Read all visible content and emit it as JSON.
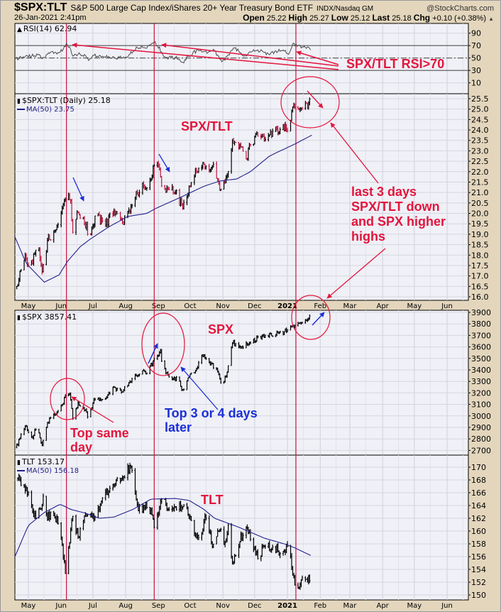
{
  "header": {
    "symbol": "$SPX:TLT",
    "description": "S&P 500 Large Cap Index/iShares 20+ Year Treasury Bond ETF",
    "exchange": "INDX/Nasdaq GM",
    "watermark": "@StockCharts.com",
    "date": "26-Jan-2021 2:41pm",
    "open_label": "Open",
    "open": "25.22",
    "high_label": "High",
    "high": "25.27",
    "low_label": "Low",
    "low": "25.12",
    "last_label": "Last",
    "last": "25.18",
    "chg_label": "Chg",
    "chg": "+0.10 (+0.38%)",
    "chg_icon": "triangle-up-icon"
  },
  "colors": {
    "annotation_red": "#e3163d",
    "annotation_blue": "#1b2fd8",
    "ma_line": "#22228a",
    "down_bar": "#c0143c",
    "marker_line": "#d0103a",
    "plot_bg": "#f0f0f7"
  },
  "x_axis": {
    "unit": "days since 2020-05-01",
    "months": [
      {
        "label": "May",
        "day": 0
      },
      {
        "label": "Jun",
        "day": 31
      },
      {
        "label": "Jul",
        "day": 61
      },
      {
        "label": "Aug",
        "day": 92
      },
      {
        "label": "Sep",
        "day": 123
      },
      {
        "label": "Oct",
        "day": 153
      },
      {
        "label": "Nov",
        "day": 184
      },
      {
        "label": "Dec",
        "day": 214
      },
      {
        "label": "2021",
        "day": 245,
        "bold": true
      },
      {
        "label": "Feb",
        "day": 276
      },
      {
        "label": "Mar",
        "day": 304
      },
      {
        "label": "Apr",
        "day": 335
      },
      {
        "label": "May",
        "day": 365
      },
      {
        "label": "Jun",
        "day": 396
      }
    ],
    "marker_days": [
      36,
      119,
      253
    ]
  },
  "chart_data": [
    {
      "id": "rsi",
      "type": "line",
      "legend": "RSI(14) 62.94",
      "ticks": [
        "90",
        "70",
        "50",
        "30",
        "10"
      ],
      "ref_lines": [
        70,
        50,
        30
      ],
      "series": [
        {
          "name": "RSI(14)",
          "points": [
            [
              -13,
              47
            ],
            [
              -5,
              52
            ],
            [
              9,
              55
            ],
            [
              13,
              49
            ],
            [
              18,
              56
            ],
            [
              26,
              59
            ],
            [
              32,
              61
            ],
            [
              36,
              74
            ],
            [
              39,
              68
            ],
            [
              42,
              53
            ],
            [
              47,
              56
            ],
            [
              54,
              54
            ],
            [
              57,
              46
            ],
            [
              62,
              54
            ],
            [
              72,
              52
            ],
            [
              81,
              51
            ],
            [
              89,
              50
            ],
            [
              96,
              56
            ],
            [
              103,
              67
            ],
            [
              112,
              66
            ],
            [
              119,
              76
            ],
            [
              122,
              70
            ],
            [
              126,
              60
            ],
            [
              130,
              50
            ],
            [
              139,
              51
            ],
            [
              146,
              43
            ],
            [
              152,
              53
            ],
            [
              156,
              60
            ],
            [
              163,
              63
            ],
            [
              170,
              59
            ],
            [
              176,
              62
            ],
            [
              183,
              44
            ],
            [
              188,
              53
            ],
            [
              195,
              66
            ],
            [
              199,
              61
            ],
            [
              206,
              53
            ],
            [
              210,
              60
            ],
            [
              217,
              63
            ],
            [
              223,
              59
            ],
            [
              228,
              55
            ],
            [
              233,
              61
            ],
            [
              242,
              61
            ],
            [
              246,
              56
            ],
            [
              250,
              73
            ],
            [
              255,
              70
            ],
            [
              258,
              66
            ],
            [
              264,
              68
            ],
            [
              267,
              62.94
            ]
          ]
        }
      ]
    },
    {
      "id": "ratio",
      "type": "ohlc",
      "legend": "$SPX:TLT (Daily) 25.18",
      "ma_legend": "MA(50) 23.75",
      "ticks": [
        "25.5",
        "25.0",
        "24.5",
        "24.0",
        "23.5",
        "23.0",
        "22.5",
        "22.0",
        "21.5",
        "21.0",
        "20.5",
        "20.0",
        "19.5",
        "19.0",
        "18.5",
        "18.0",
        "17.5",
        "17.0",
        "16.5",
        "16.0"
      ],
      "series": [
        {
          "name": "$SPX:TLT",
          "points": [
            [
              -11,
              16.5
            ],
            [
              -9,
              16.85
            ],
            [
              -3,
              18.0
            ],
            [
              1,
              17.3
            ],
            [
              9,
              18.4
            ],
            [
              13,
              17.2
            ],
            [
              18,
              18.7
            ],
            [
              26,
              19.2
            ],
            [
              32,
              20.25
            ],
            [
              36,
              21.1
            ],
            [
              40,
              20.6
            ],
            [
              42,
              19.1
            ],
            [
              46,
              20.1
            ],
            [
              52,
              19.8
            ],
            [
              57,
              18.9
            ],
            [
              64,
              19.9
            ],
            [
              72,
              19.4
            ],
            [
              81,
              20.1
            ],
            [
              89,
              19.6
            ],
            [
              96,
              20.1
            ],
            [
              103,
              21.0
            ],
            [
              109,
              21.3
            ],
            [
              116,
              21.6
            ],
            [
              119,
              22.3
            ],
            [
              124,
              22.1
            ],
            [
              127,
              21.0
            ],
            [
              134,
              21.3
            ],
            [
              139,
              21.0
            ],
            [
              146,
              20.25
            ],
            [
              152,
              21.3
            ],
            [
              156,
              21.7
            ],
            [
              163,
              22.4
            ],
            [
              170,
              22.2
            ],
            [
              176,
              22.4
            ],
            [
              181,
              21.1
            ],
            [
              186,
              21.5
            ],
            [
              191,
              22.5
            ],
            [
              193,
              23.5
            ],
            [
              201,
              23.2
            ],
            [
              206,
              22.6
            ],
            [
              210,
              23.3
            ],
            [
              219,
              23.9
            ],
            [
              226,
              23.5
            ],
            [
              233,
              24.0
            ],
            [
              246,
              24.1
            ],
            [
              250,
              25.1
            ],
            [
              257,
              25.05
            ],
            [
              265,
              25.3
            ],
            [
              268,
              25.18
            ]
          ]
        },
        {
          "name": "MA(50)",
          "points": [
            [
              -13,
              18.9
            ],
            [
              -2,
              17.6
            ],
            [
              15,
              16.7
            ],
            [
              29,
              17.05
            ],
            [
              37,
              17.7
            ],
            [
              49,
              18.4
            ],
            [
              58,
              18.75
            ],
            [
              76,
              19.35
            ],
            [
              94,
              19.85
            ],
            [
              112,
              20.0
            ],
            [
              121,
              20.25
            ],
            [
              143,
              20.75
            ],
            [
              166,
              21.3
            ],
            [
              181,
              21.55
            ],
            [
              197,
              21.65
            ],
            [
              210,
              22.0
            ],
            [
              228,
              22.75
            ],
            [
              253,
              23.35
            ],
            [
              268,
              23.75
            ]
          ]
        }
      ]
    },
    {
      "id": "spx",
      "type": "ohlc",
      "legend": "$SPX 3857.41",
      "ticks": [
        "3900",
        "3800",
        "3700",
        "3600",
        "3500",
        "3400",
        "3300",
        "3200",
        "3100",
        "3000",
        "2900",
        "2800",
        "2700"
      ],
      "series": [
        {
          "name": "$SPX",
          "points": [
            [
              -12,
              2727
            ],
            [
              -2,
              2912
            ],
            [
              2,
              2790
            ],
            [
              9,
              2912
            ],
            [
              13,
              2745
            ],
            [
              18,
              2943
            ],
            [
              26,
              3017
            ],
            [
              32,
              3097
            ],
            [
              36,
              3202
            ],
            [
              39,
              3190
            ],
            [
              42,
              2974
            ],
            [
              47,
              3116
            ],
            [
              54,
              3054
            ],
            [
              57,
              2993
            ],
            [
              62,
              3147
            ],
            [
              72,
              3147
            ],
            [
              81,
              3252
            ],
            [
              89,
              3209
            ],
            [
              96,
              3301
            ],
            [
              105,
              3363
            ],
            [
              113,
              3388
            ],
            [
              121,
              3511
            ],
            [
              125,
              3573
            ],
            [
              127,
              3406
            ],
            [
              134,
              3344
            ],
            [
              141,
              3326
            ],
            [
              146,
              3221
            ],
            [
              152,
              3344
            ],
            [
              159,
              3406
            ],
            [
              164,
              3530
            ],
            [
              172,
              3450
            ],
            [
              179,
              3388
            ],
            [
              183,
              3264
            ],
            [
              187,
              3344
            ],
            [
              193,
              3634
            ],
            [
              201,
              3591
            ],
            [
              210,
              3634
            ],
            [
              221,
              3696
            ],
            [
              230,
              3696
            ],
            [
              242,
              3733
            ],
            [
              252,
              3789
            ],
            [
              255,
              3807
            ],
            [
              262,
              3838
            ],
            [
              266,
              3869
            ],
            [
              268,
              3857.41
            ]
          ]
        }
      ]
    },
    {
      "id": "tlt",
      "type": "ohlc",
      "legend": "TLT 153.17",
      "ma_legend": "MA(50) 156.18",
      "ticks": [
        "170",
        "168",
        "166",
        "164",
        "162",
        "160",
        "158",
        "156",
        "154",
        "152",
        "150"
      ],
      "series": [
        {
          "name": "TLT",
          "points": [
            [
              -10,
              168.3
            ],
            [
              -5,
              167.2
            ],
            [
              1,
              165.7
            ],
            [
              5,
              162.3
            ],
            [
              11,
              163.4
            ],
            [
              15,
              165.7
            ],
            [
              18,
              161.7
            ],
            [
              22,
              163.4
            ],
            [
              28,
              161.2
            ],
            [
              32,
              157.9
            ],
            [
              35,
              153.4
            ],
            [
              38,
              157.6
            ],
            [
              42,
              162.3
            ],
            [
              47,
              159
            ],
            [
              52,
              161.7
            ],
            [
              58,
              163.4
            ],
            [
              62,
              161.7
            ],
            [
              67,
              163.4
            ],
            [
              72,
              165.3
            ],
            [
              76,
              166.1
            ],
            [
              83,
              167.9
            ],
            [
              92,
              169
            ],
            [
              97,
              170.1
            ],
            [
              99,
              168.3
            ],
            [
              102,
              165
            ],
            [
              106,
              162.8
            ],
            [
              113,
              164.6
            ],
            [
              119,
              160.6
            ],
            [
              123,
              162.8
            ],
            [
              126,
              165
            ],
            [
              132,
              163.4
            ],
            [
              141,
              163.4
            ],
            [
              148,
              164.2
            ],
            [
              153,
              162.3
            ],
            [
              158,
              159.4
            ],
            [
              163,
              159.8
            ],
            [
              168,
              162
            ],
            [
              174,
              157.6
            ],
            [
              181,
              160.1
            ],
            [
              185,
              157.9
            ],
            [
              189,
              160.9
            ],
            [
              193,
              155
            ],
            [
              198,
              157.9
            ],
            [
              206,
              160.6
            ],
            [
              210,
              158.7
            ],
            [
              217,
              155.7
            ],
            [
              226,
              158.3
            ],
            [
              233,
              156.8
            ],
            [
              240,
              157.2
            ],
            [
              246,
              157.6
            ],
            [
              250,
              153.1
            ],
            [
              254,
              150.9
            ],
            [
              258,
              152.3
            ],
            [
              264,
              152
            ],
            [
              267,
              153.17
            ]
          ]
        },
        {
          "name": "MA(50)",
          "points": [
            [
              -13,
              155.9
            ],
            [
              0,
              160.9
            ],
            [
              15,
              162.9
            ],
            [
              30,
              164.2
            ],
            [
              40,
              163.4
            ],
            [
              54,
              162.8
            ],
            [
              67,
              162
            ],
            [
              81,
              162.2
            ],
            [
              99,
              163.4
            ],
            [
              116,
              165
            ],
            [
              139,
              165.1
            ],
            [
              152,
              164.8
            ],
            [
              166,
              163.4
            ],
            [
              176,
              162
            ],
            [
              199,
              160.6
            ],
            [
              223,
              158.9
            ],
            [
              244,
              157.9
            ],
            [
              253,
              157.3
            ],
            [
              267,
              156.18
            ]
          ]
        }
      ]
    }
  ],
  "annotations": {
    "rsi_note": "SPX/TLT RSI>70",
    "ratio_title": "SPX/TLT",
    "last3_lines": [
      "last 3 days",
      "SPX/TLT down",
      "and SPX higher",
      "highs"
    ],
    "spx_title": "SPX",
    "top_same_day_lines": [
      "Top same",
      "day"
    ],
    "top_later_lines": [
      "Top 3 or 4 days",
      "later"
    ],
    "tlt_title": "TLT"
  }
}
